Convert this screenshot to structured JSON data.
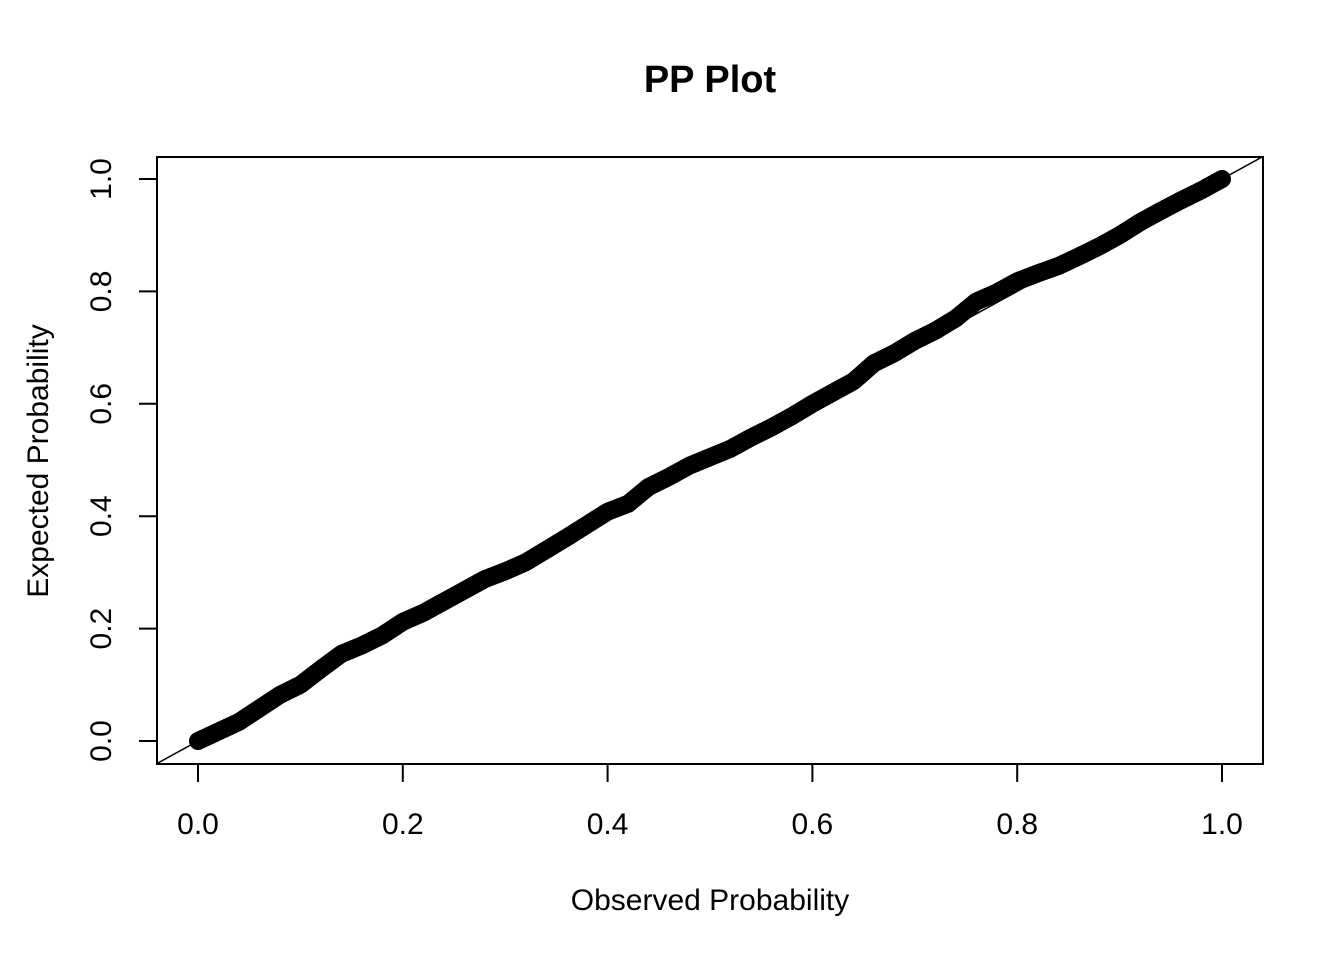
{
  "chart_data": {
    "type": "scatter",
    "title": "PP Plot",
    "xlabel": "Observed Probability",
    "ylabel": "Expected Probability",
    "xlim": [
      0,
      1
    ],
    "ylim": [
      0,
      1
    ],
    "grid": false,
    "legend": "none",
    "x_ticks": [
      "0.0",
      "0.2",
      "0.4",
      "0.6",
      "0.8",
      "1.0"
    ],
    "y_ticks": [
      "0.0",
      "0.2",
      "0.4",
      "0.6",
      "0.8",
      "1.0"
    ],
    "reference_line": {
      "intercept": 0,
      "slope": 1
    },
    "point_color": "#000000",
    "series": [
      {
        "x": [
          0.0,
          0.02,
          0.04,
          0.06,
          0.08,
          0.1,
          0.12,
          0.14,
          0.16,
          0.18,
          0.2,
          0.22,
          0.24,
          0.26,
          0.28,
          0.3,
          0.32,
          0.34,
          0.36,
          0.38,
          0.4,
          0.42,
          0.44,
          0.46,
          0.48,
          0.5,
          0.52,
          0.54,
          0.56,
          0.58,
          0.6,
          0.62,
          0.64,
          0.66,
          0.68,
          0.7,
          0.72,
          0.74,
          0.76,
          0.78,
          0.8,
          0.82,
          0.84,
          0.86,
          0.88,
          0.9,
          0.92,
          0.94,
          0.96,
          0.98,
          1.0
        ],
        "y": [
          0.0,
          0.017,
          0.034,
          0.058,
          0.082,
          0.1,
          0.128,
          0.155,
          0.17,
          0.188,
          0.212,
          0.228,
          0.248,
          0.268,
          0.288,
          0.302,
          0.318,
          0.34,
          0.362,
          0.385,
          0.408,
          0.422,
          0.452,
          0.47,
          0.49,
          0.505,
          0.52,
          0.54,
          0.558,
          0.578,
          0.6,
          0.62,
          0.64,
          0.672,
          0.69,
          0.712,
          0.73,
          0.752,
          0.782,
          0.798,
          0.818,
          0.832,
          0.845,
          0.862,
          0.88,
          0.9,
          0.923,
          0.943,
          0.962,
          0.98,
          1.0
        ]
      }
    ]
  }
}
